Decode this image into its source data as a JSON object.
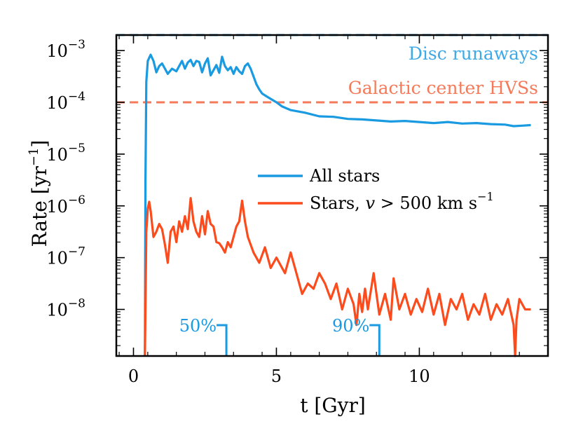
{
  "chart_data": {
    "type": "line",
    "xlabel": "t [Gyr]",
    "ylabel": "Rate [yr",
    "ylabel_sup": "−1",
    "ylabel_close": "]",
    "xlim": [
      -0.6,
      14.5
    ],
    "ylog_lim": [
      -8.9,
      -2.7
    ],
    "xticks": [
      {
        "value": 0,
        "label": "0"
      },
      {
        "value": 5,
        "label": "5"
      },
      {
        "value": 10,
        "label": "10"
      }
    ],
    "yticks": [
      {
        "exp": -3,
        "base": "10",
        "sup": "−3"
      },
      {
        "exp": -4,
        "base": "10",
        "sup": "−4"
      },
      {
        "exp": -5,
        "base": "10",
        "sup": "−5"
      },
      {
        "exp": -6,
        "base": "10",
        "sup": "−6"
      },
      {
        "exp": -7,
        "base": "10",
        "sup": "−7"
      },
      {
        "exp": -8,
        "base": "10",
        "sup": "−8"
      }
    ],
    "reference_lines": [
      {
        "name": "disc-runaways",
        "label": "Disc runaways",
        "log10_value": -2.7,
        "color": "#3fa9e6"
      },
      {
        "name": "galactic-center-hvs",
        "label": "Galactic center HVSs",
        "log10_value": -4.0,
        "color": "#f47a5a"
      }
    ],
    "markers": [
      {
        "name": "50pct",
        "label": "50%",
        "x": 3.25,
        "color": "#1a9ae0"
      },
      {
        "name": "90pct",
        "label": "90%",
        "x": 8.6,
        "color": "#1a9ae0"
      }
    ],
    "legend": {
      "position": "center-right",
      "entries": [
        {
          "label": "All stars",
          "color": "#1a9ae0"
        },
        {
          "label": "Stars, ",
          "label_var": "v",
          "label_rest": " > 500 km s",
          "label_sup": "−1",
          "color": "#fc4b1c"
        }
      ]
    },
    "series": [
      {
        "name": "All stars",
        "color": "#1a9ae0",
        "x": [
          0.4,
          0.42,
          0.45,
          0.5,
          0.6,
          0.7,
          0.8,
          0.9,
          1.0,
          1.1,
          1.2,
          1.35,
          1.5,
          1.6,
          1.7,
          1.8,
          1.9,
          2.0,
          2.1,
          2.2,
          2.3,
          2.4,
          2.5,
          2.6,
          2.7,
          2.8,
          2.9,
          3.0,
          3.1,
          3.2,
          3.3,
          3.4,
          3.5,
          3.6,
          3.7,
          3.8,
          3.9,
          4.0,
          4.1,
          4.2,
          4.3,
          4.4,
          4.5,
          4.7,
          5.0,
          5.2,
          5.5,
          6.0,
          6.5,
          7.0,
          7.5,
          8.0,
          8.5,
          9.0,
          9.5,
          10.0,
          10.5,
          11.0,
          11.5,
          12.0,
          12.5,
          13.0,
          13.3,
          13.6,
          13.9
        ],
        "log10_values": [
          -8.9,
          -5.5,
          -3.6,
          -3.2,
          -3.08,
          -3.2,
          -3.42,
          -3.3,
          -3.25,
          -3.35,
          -3.45,
          -3.35,
          -3.4,
          -3.3,
          -3.2,
          -3.35,
          -3.23,
          -3.18,
          -3.3,
          -3.2,
          -3.22,
          -3.42,
          -3.25,
          -3.15,
          -3.48,
          -3.38,
          -3.28,
          -3.43,
          -3.12,
          -3.3,
          -3.38,
          -3.32,
          -3.45,
          -3.32,
          -3.4,
          -3.45,
          -3.3,
          -3.25,
          -3.35,
          -3.5,
          -3.65,
          -3.75,
          -3.83,
          -3.9,
          -4.0,
          -4.08,
          -4.15,
          -4.2,
          -4.27,
          -4.28,
          -4.32,
          -4.33,
          -4.35,
          -4.37,
          -4.36,
          -4.38,
          -4.4,
          -4.38,
          -4.41,
          -4.4,
          -4.42,
          -4.43,
          -4.46,
          -4.45,
          -4.44
        ]
      },
      {
        "name": "Stars, v > 500 km s−1",
        "color": "#fc4b1c",
        "x": [
          0.4,
          0.45,
          0.5,
          0.55,
          0.6,
          0.7,
          0.8,
          0.9,
          1.0,
          1.1,
          1.2,
          1.3,
          1.4,
          1.5,
          1.6,
          1.7,
          1.8,
          1.9,
          2.0,
          2.1,
          2.2,
          2.3,
          2.4,
          2.5,
          2.6,
          2.7,
          2.8,
          2.9,
          3.0,
          3.1,
          3.2,
          3.3,
          3.4,
          3.5,
          3.6,
          3.7,
          3.8,
          3.9,
          4.0,
          4.2,
          4.4,
          4.6,
          4.8,
          5.0,
          5.2,
          5.3,
          5.4,
          5.5,
          5.7,
          5.9,
          6.1,
          6.3,
          6.5,
          6.7,
          6.9,
          7.1,
          7.3,
          7.5,
          7.7,
          7.8,
          7.9,
          8.0,
          8.1,
          8.2,
          8.4,
          8.6,
          8.8,
          9.0,
          9.1,
          9.3,
          9.5,
          9.7,
          9.9,
          10.1,
          10.3,
          10.5,
          10.7,
          10.9,
          11.1,
          11.3,
          11.5,
          11.7,
          11.9,
          12.1,
          12.3,
          12.5,
          12.7,
          12.9,
          13.1,
          13.3,
          13.35,
          13.4,
          13.5,
          13.7,
          13.9
        ],
        "log10_values": [
          -8.9,
          -6.5,
          -6.05,
          -5.92,
          -6.1,
          -6.6,
          -6.5,
          -6.35,
          -6.45,
          -6.75,
          -7.1,
          -6.5,
          -6.4,
          -6.7,
          -6.3,
          -6.5,
          -6.2,
          -6.45,
          -5.85,
          -6.3,
          -6.5,
          -6.6,
          -6.2,
          -6.55,
          -6.1,
          -6.35,
          -6.4,
          -6.7,
          -6.72,
          -6.8,
          -6.9,
          -6.7,
          -6.8,
          -6.6,
          -6.4,
          -6.3,
          -5.9,
          -6.3,
          -6.6,
          -6.9,
          -7.1,
          -6.8,
          -7.2,
          -7.0,
          -7.2,
          -7.3,
          -7.1,
          -6.9,
          -7.3,
          -7.7,
          -7.5,
          -7.6,
          -7.3,
          -7.5,
          -7.8,
          -7.5,
          -8.0,
          -7.6,
          -7.9,
          -8.3,
          -7.7,
          -8.05,
          -7.6,
          -8.0,
          -7.3,
          -8.1,
          -7.7,
          -8.2,
          -7.4,
          -8.0,
          -7.7,
          -8.1,
          -7.8,
          -8.05,
          -7.6,
          -8.1,
          -7.7,
          -8.3,
          -7.8,
          -8.0,
          -7.7,
          -8.2,
          -7.9,
          -8.1,
          -7.7,
          -8.2,
          -7.9,
          -8.1,
          -7.8,
          -8.3,
          -8.9,
          -8.2,
          -7.8,
          -8.0,
          -8.0
        ]
      }
    ]
  }
}
